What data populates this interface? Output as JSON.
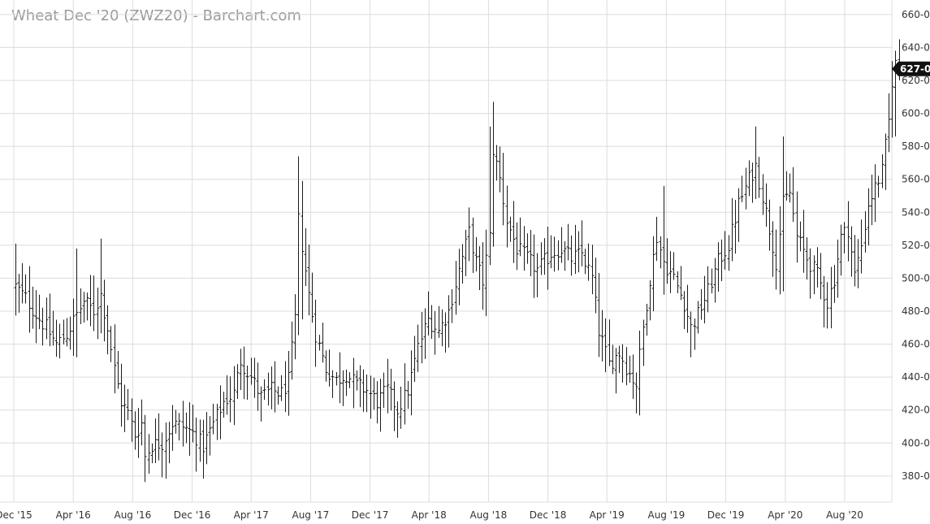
{
  "header": {
    "title": "Wheat Dec '20 (ZWZ20) - Barchart.com"
  },
  "chart_data": {
    "type": "ohlc",
    "title": "Wheat Dec '20 (ZWZ20) - Barchart.com",
    "interval": "weekly",
    "ylim": [
      370,
      668
    ],
    "y_ticks": [
      380,
      400,
      420,
      440,
      460,
      480,
      500,
      520,
      540,
      560,
      580,
      600,
      620,
      640,
      660
    ],
    "y_tick_labels": [
      "380-0",
      "400-0",
      "420-0",
      "440-0",
      "460-0",
      "480-0",
      "500-0",
      "520-0",
      "540-0",
      "560-0",
      "580-0",
      "600-0",
      "620-0",
      "640-0",
      "660-0"
    ],
    "x_ticks": [
      "2015-12-01",
      "2016-04-01",
      "2016-08-01",
      "2016-12-01",
      "2017-04-01",
      "2017-08-01",
      "2017-12-01",
      "2018-04-01",
      "2018-08-01",
      "2018-12-01",
      "2019-04-01",
      "2019-08-01",
      "2019-12-01",
      "2020-04-01",
      "2020-08-01"
    ],
    "x_tick_labels": [
      "Dec '15",
      "Apr '16",
      "Aug '16",
      "Dec '16",
      "Apr '17",
      "Aug '17",
      "Dec '17",
      "Apr '18",
      "Aug '18",
      "Dec '18",
      "Apr '19",
      "Aug '19",
      "Dec '19",
      "Apr '20",
      "Aug '20"
    ],
    "x_start": "2015-12-01",
    "x_end": "2020-11-20",
    "last_price": 627,
    "last_price_label": "627-0",
    "grid": true,
    "series_anchors": [
      [
        "2015-12-04",
        495
      ],
      [
        "2015-12-25",
        488
      ],
      [
        "2016-01-15",
        478
      ],
      [
        "2016-02-05",
        470
      ],
      [
        "2016-02-26",
        460
      ],
      [
        "2016-03-18",
        466
      ],
      [
        "2016-04-08",
        478
      ],
      [
        "2016-04-22",
        486
      ],
      [
        "2016-05-13",
        480
      ],
      [
        "2016-05-27",
        490
      ],
      [
        "2016-06-10",
        470
      ],
      [
        "2016-06-24",
        445
      ],
      [
        "2016-07-08",
        425
      ],
      [
        "2016-07-22",
        418
      ],
      [
        "2016-08-05",
        405
      ],
      [
        "2016-08-19",
        412
      ],
      [
        "2016-08-26",
        392
      ],
      [
        "2016-09-09",
        399
      ],
      [
        "2016-09-30",
        400
      ],
      [
        "2016-10-21",
        412
      ],
      [
        "2016-11-11",
        410
      ],
      [
        "2016-12-02",
        406
      ],
      [
        "2016-12-23",
        398
      ],
      [
        "2017-01-13",
        412
      ],
      [
        "2017-02-03",
        425
      ],
      [
        "2017-02-24",
        430
      ],
      [
        "2017-03-10",
        450
      ],
      [
        "2017-03-31",
        440
      ],
      [
        "2017-04-21",
        428
      ],
      [
        "2017-05-12",
        432
      ],
      [
        "2017-06-02",
        430
      ],
      [
        "2017-06-16",
        438
      ],
      [
        "2017-06-30",
        475
      ],
      [
        "2017-07-07",
        535
      ],
      [
        "2017-07-14",
        520
      ],
      [
        "2017-07-28",
        490
      ],
      [
        "2017-08-11",
        466
      ],
      [
        "2017-09-01",
        445
      ],
      [
        "2017-09-22",
        438
      ],
      [
        "2017-10-13",
        442
      ],
      [
        "2017-11-03",
        435
      ],
      [
        "2017-11-24",
        432
      ],
      [
        "2017-12-15",
        425
      ],
      [
        "2018-01-05",
        432
      ],
      [
        "2018-01-26",
        420
      ],
      [
        "2018-02-16",
        432
      ],
      [
        "2018-03-09",
        458
      ],
      [
        "2018-03-30",
        475
      ],
      [
        "2018-04-20",
        468
      ],
      [
        "2018-05-11",
        480
      ],
      [
        "2018-06-01",
        505
      ],
      [
        "2018-06-22",
        528
      ],
      [
        "2018-07-06",
        510
      ],
      [
        "2018-07-20",
        498
      ],
      [
        "2018-08-03",
        525
      ],
      [
        "2018-08-10",
        578
      ],
      [
        "2018-08-24",
        560
      ],
      [
        "2018-09-07",
        535
      ],
      [
        "2018-09-28",
        518
      ],
      [
        "2018-10-19",
        512
      ],
      [
        "2018-11-09",
        505
      ],
      [
        "2018-12-07",
        515
      ],
      [
        "2018-12-28",
        518
      ],
      [
        "2019-01-18",
        512
      ],
      [
        "2019-02-08",
        515
      ],
      [
        "2019-03-01",
        500
      ],
      [
        "2019-03-15",
        468
      ],
      [
        "2019-04-05",
        448
      ],
      [
        "2019-04-26",
        455
      ],
      [
        "2019-05-17",
        442
      ],
      [
        "2019-05-31",
        436
      ],
      [
        "2019-06-14",
        470
      ],
      [
        "2019-06-28",
        500
      ],
      [
        "2019-07-12",
        525
      ],
      [
        "2019-07-26",
        510
      ],
      [
        "2019-08-16",
        500
      ],
      [
        "2019-09-06",
        485
      ],
      [
        "2019-09-20",
        470
      ],
      [
        "2019-10-04",
        478
      ],
      [
        "2019-10-25",
        492
      ],
      [
        "2019-11-15",
        510
      ],
      [
        "2019-12-06",
        520
      ],
      [
        "2019-12-27",
        545
      ],
      [
        "2020-01-17",
        560
      ],
      [
        "2020-01-31",
        568
      ],
      [
        "2020-02-14",
        550
      ],
      [
        "2020-02-28",
        530
      ],
      [
        "2020-03-13",
        510
      ],
      [
        "2020-03-27",
        545
      ],
      [
        "2020-04-10",
        552
      ],
      [
        "2020-04-24",
        525
      ],
      [
        "2020-05-15",
        512
      ],
      [
        "2020-06-05",
        502
      ],
      [
        "2020-06-26",
        485
      ],
      [
        "2020-07-10",
        500
      ],
      [
        "2020-07-24",
        525
      ],
      [
        "2020-08-07",
        530
      ],
      [
        "2020-08-21",
        502
      ],
      [
        "2020-09-04",
        520
      ],
      [
        "2020-09-18",
        545
      ],
      [
        "2020-10-02",
        555
      ],
      [
        "2020-10-16",
        565
      ],
      [
        "2020-10-30",
        595
      ],
      [
        "2020-11-06",
        620
      ],
      [
        "2020-11-13",
        630
      ],
      [
        "2020-11-20",
        627
      ]
    ],
    "extremes": [
      [
        "2015-12-04",
        521,
        480
      ],
      [
        "2016-04-08",
        518,
        452
      ],
      [
        "2016-05-27",
        524,
        470
      ],
      [
        "2016-08-26",
        405,
        385
      ],
      [
        "2017-07-07",
        574,
        512
      ],
      [
        "2017-07-14",
        559,
        475
      ],
      [
        "2018-08-03",
        592,
        518
      ],
      [
        "2018-08-10",
        607,
        550
      ],
      [
        "2019-05-31",
        440,
        418
      ],
      [
        "2019-07-26",
        556,
        490
      ],
      [
        "2019-09-20",
        478,
        452
      ],
      [
        "2020-01-31",
        592,
        548
      ],
      [
        "2020-03-27",
        586,
        492
      ],
      [
        "2020-06-26",
        492,
        472
      ],
      [
        "2020-11-13",
        638,
        586
      ]
    ]
  }
}
